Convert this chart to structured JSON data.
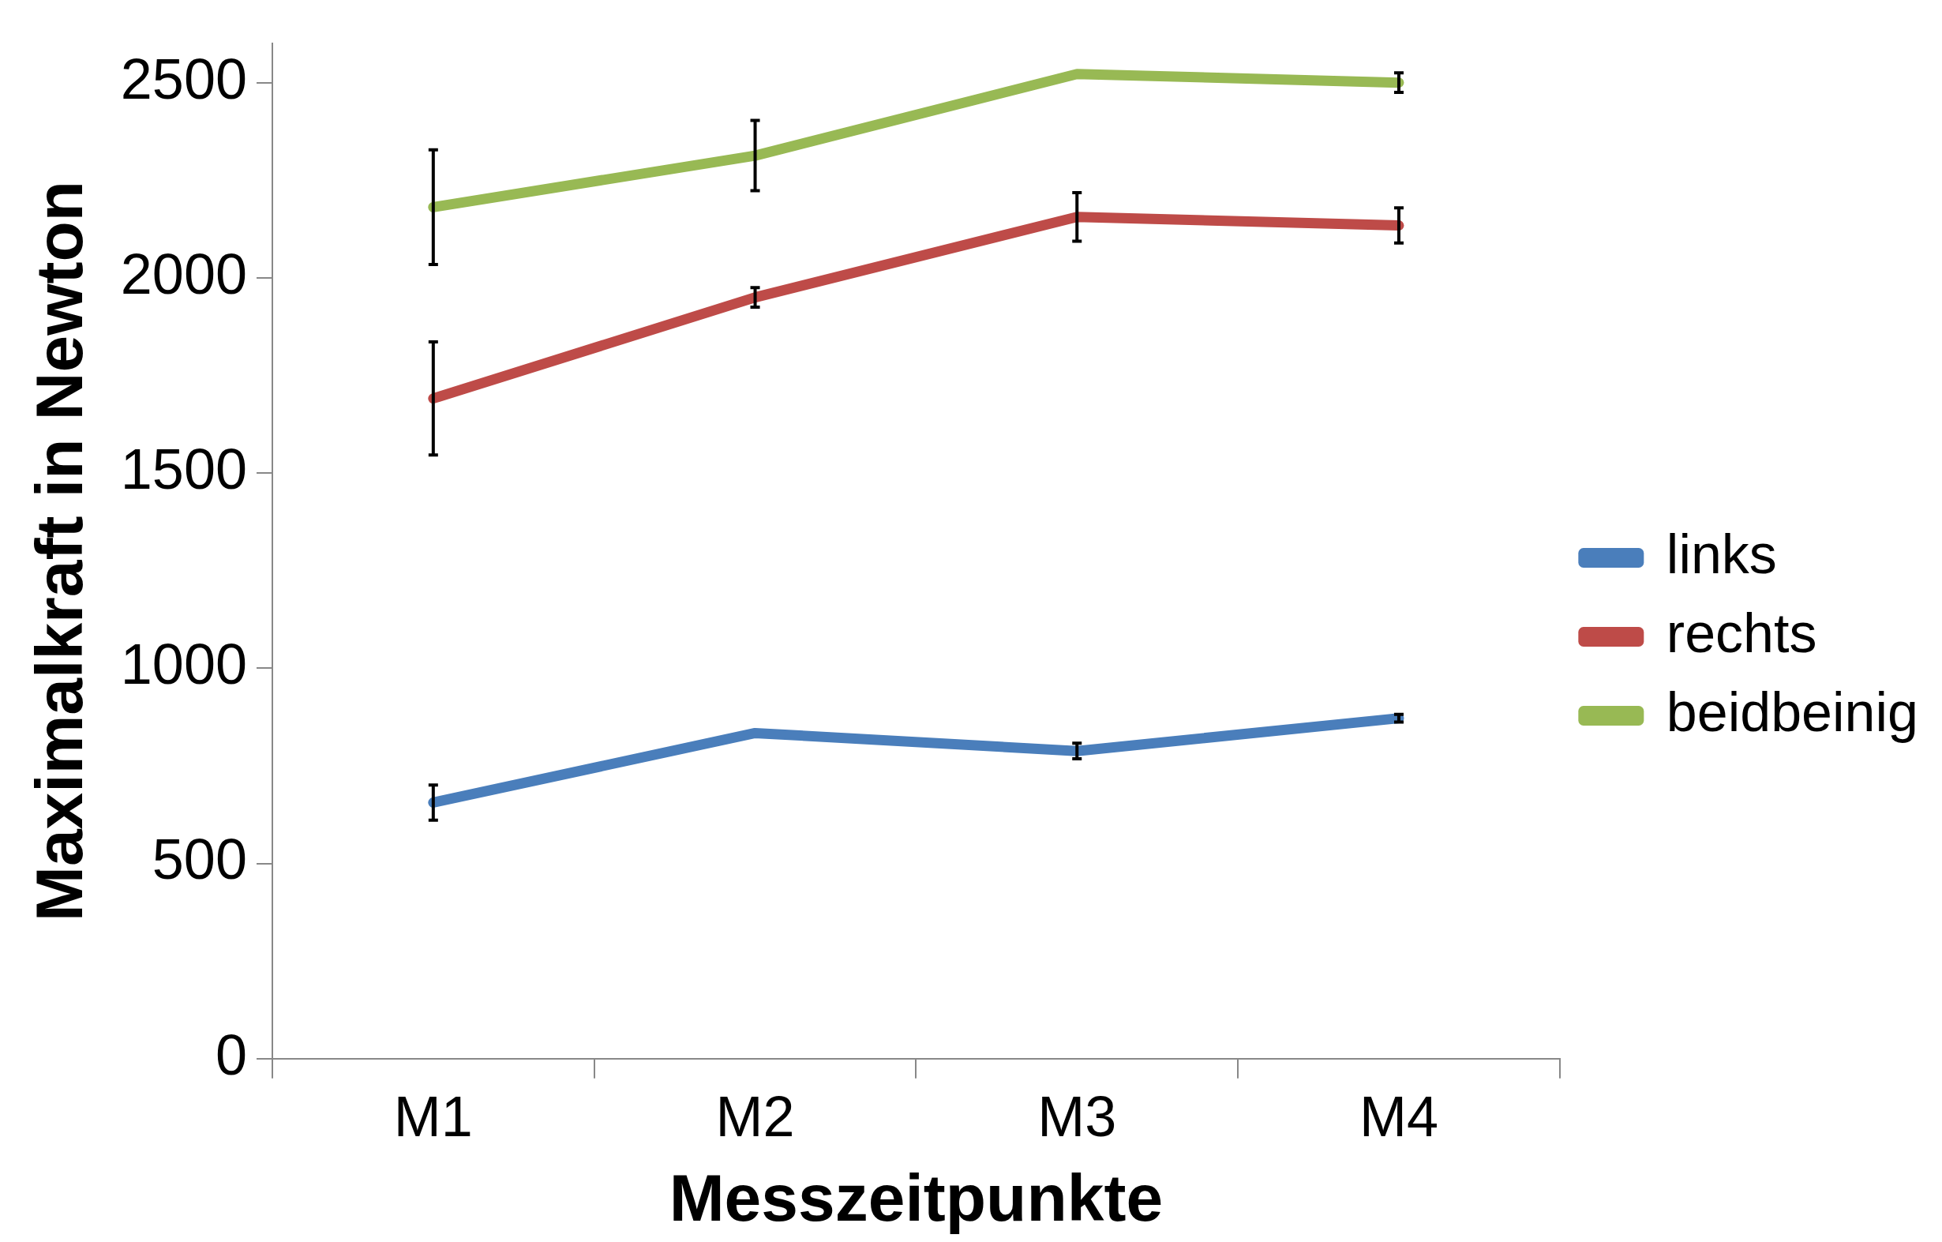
{
  "chart_data": {
    "type": "line",
    "xlabel": "Messzeitpunkte",
    "ylabel": "Maximalkraft in Newton",
    "categories": [
      "M1",
      "M2",
      "M3",
      "M4"
    ],
    "series": [
      {
        "name": "links",
        "color": "#4a7ebb",
        "values": [
          656,
          834,
          788,
          872
        ],
        "errors": [
          45,
          null,
          20,
          10
        ]
      },
      {
        "name": "rechts",
        "color": "#be4b48",
        "values": [
          1691,
          1950,
          2156,
          2134
        ],
        "errors": [
          145,
          25,
          62,
          45
        ]
      },
      {
        "name": "beidbeinig",
        "color": "#98b954",
        "values": [
          2181,
          2313,
          2522,
          2500
        ],
        "errors": [
          147,
          90,
          null,
          25
        ]
      }
    ],
    "ylim": [
      0,
      2600
    ],
    "yticks": [
      0,
      500,
      1000,
      1500,
      2000,
      2500
    ],
    "grid": false,
    "legend": "right",
    "line_style": "solid"
  }
}
